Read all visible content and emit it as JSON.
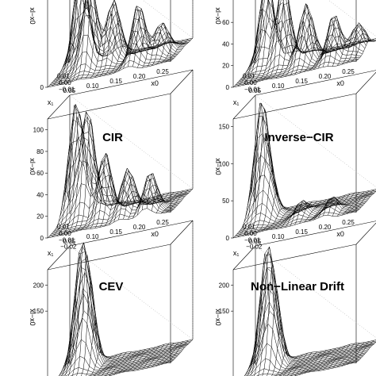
{
  "panels": [
    {
      "key": "p1",
      "title": "",
      "ylabel": "xl−x0",
      "ztick_labels": [
        "0"
      ],
      "xtick_labels": [
        "0.01",
        "0.00",
        "−0.01",
        "0.05",
        "0.10",
        "0.15",
        "0.20",
        "0.25"
      ],
      "y_axis_label": "x₁",
      "x_axis_label": "x0"
    },
    {
      "key": "p2",
      "title": "",
      "ylabel": "xl−x0",
      "ztick_labels": [
        "0",
        "20",
        "40",
        "60"
      ],
      "xtick_labels": [
        "0.01",
        "0.00",
        "−0.01",
        "0.05",
        "0.10",
        "0.15",
        "0.20",
        "0.25"
      ],
      "y_axis_label": "x₁",
      "x_axis_label": "x0"
    },
    {
      "key": "p3",
      "title": "CIR",
      "ylabel": "xl−x0",
      "ztick_labels": [
        "0",
        "20",
        "40",
        "60",
        "80",
        "100"
      ],
      "xtick_labels": [
        "0.01",
        "0.00",
        "−0.01",
        "−0.02",
        "0.05",
        "0.10",
        "0.15",
        "0.20",
        "0.25"
      ],
      "y_axis_label": "x₁",
      "x_axis_label": "x0"
    },
    {
      "key": "p4",
      "title": "Inverse−CIR",
      "ylabel": "xl−x0",
      "ztick_labels": [
        "0",
        "50",
        "100",
        "150"
      ],
      "xtick_labels": [
        "0.01",
        "0.00",
        "−0.01",
        "−0.02",
        "0.05",
        "0.10",
        "0.15",
        "0.20",
        "0.25"
      ],
      "y_axis_label": "x₁",
      "x_axis_label": "x0"
    },
    {
      "key": "p5",
      "title": "CEV",
      "ylabel": "xl−x0",
      "ztick_labels": [
        "150",
        "200"
      ],
      "xtick_labels": [],
      "y_axis_label": "",
      "x_axis_label": ""
    },
    {
      "key": "p6",
      "title": "Non−Linear Drift",
      "ylabel": "xl−x0",
      "ztick_labels": [
        "150",
        "200"
      ],
      "xtick_labels": [],
      "y_axis_label": "",
      "x_axis_label": ""
    }
  ],
  "chart_data": [
    {
      "type": "surface",
      "title": "",
      "zlabel": "xl−x0",
      "x_label": "x0",
      "y_label": "x₁",
      "x_ticks": [
        0.05,
        0.1,
        0.15,
        0.2,
        0.25
      ],
      "y_ticks": [
        0.01,
        0.0,
        -0.01
      ],
      "z_ticks": [
        0
      ],
      "peaks": [
        {
          "x0": 0.05,
          "x1": 0.005,
          "z": 100
        },
        {
          "x0": 0.08,
          "x1": -0.005,
          "z": 80
        },
        {
          "x0": 0.12,
          "x1": 0.0,
          "z": 60
        },
        {
          "x0": 0.18,
          "x1": -0.01,
          "z": 55
        },
        {
          "x0": 0.22,
          "x1": -0.005,
          "z": 30
        }
      ]
    },
    {
      "type": "surface",
      "title": "",
      "zlabel": "xl−x0",
      "x_label": "x0",
      "y_label": "x₁",
      "x_ticks": [
        0.05,
        0.1,
        0.15,
        0.2,
        0.25
      ],
      "y_ticks": [
        0.01,
        0.0,
        -0.01
      ],
      "z_ticks": [
        0,
        20,
        40,
        60
      ],
      "peaks": [
        {
          "x0": 0.05,
          "x1": 0.005,
          "z": 85
        },
        {
          "x0": 0.09,
          "x1": 0.0,
          "z": 75
        },
        {
          "x0": 0.14,
          "x1": -0.005,
          "z": 55
        },
        {
          "x0": 0.2,
          "x1": -0.01,
          "z": 40
        },
        {
          "x0": 0.24,
          "x1": -0.005,
          "z": 25
        }
      ]
    },
    {
      "type": "surface",
      "title": "CIR",
      "zlabel": "xl−x0",
      "x_label": "x0",
      "y_label": "x₁",
      "x_ticks": [
        0.05,
        0.1,
        0.15,
        0.2,
        0.25
      ],
      "y_ticks": [
        0.01,
        0.0,
        -0.01,
        -0.02
      ],
      "z_ticks": [
        0,
        20,
        40,
        60,
        80,
        100
      ],
      "peaks": [
        {
          "x0": 0.04,
          "x1": 0.005,
          "z": 105
        },
        {
          "x0": 0.07,
          "x1": 0.0,
          "z": 95
        },
        {
          "x0": 0.11,
          "x1": -0.005,
          "z": 60
        },
        {
          "x0": 0.16,
          "x1": -0.01,
          "z": 45
        },
        {
          "x0": 0.21,
          "x1": -0.015,
          "z": 35
        }
      ]
    },
    {
      "type": "surface",
      "title": "Inverse−CIR",
      "zlabel": "xl−x0",
      "x_label": "x0",
      "y_label": "x₁",
      "x_ticks": [
        0.05,
        0.1,
        0.15,
        0.2,
        0.25
      ],
      "y_ticks": [
        0.01,
        0.0,
        -0.01,
        -0.02
      ],
      "z_ticks": [
        0,
        50,
        100,
        150
      ],
      "peaks": [
        {
          "x0": 0.04,
          "x1": 0.005,
          "z": 150
        },
        {
          "x0": 0.06,
          "x1": 0.0,
          "z": 60
        },
        {
          "x0": 0.14,
          "x1": -0.01,
          "z": 20
        },
        {
          "x0": 0.2,
          "x1": -0.015,
          "z": 18
        }
      ]
    },
    {
      "type": "surface",
      "title": "CEV",
      "zlabel": "xl−x0",
      "z_ticks": [
        150,
        200
      ],
      "peaks": [
        {
          "x0": 0.05,
          "x1": 0.005,
          "z": 210
        },
        {
          "x0": 0.07,
          "x1": 0.0,
          "z": 160
        }
      ]
    },
    {
      "type": "surface",
      "title": "Non−Linear Drift",
      "zlabel": "xl−x0",
      "z_ticks": [
        150,
        200
      ],
      "peaks": [
        {
          "x0": 0.05,
          "x1": 0.005,
          "z": 210
        },
        {
          "x0": 0.07,
          "x1": 0.0,
          "z": 140
        }
      ]
    }
  ]
}
